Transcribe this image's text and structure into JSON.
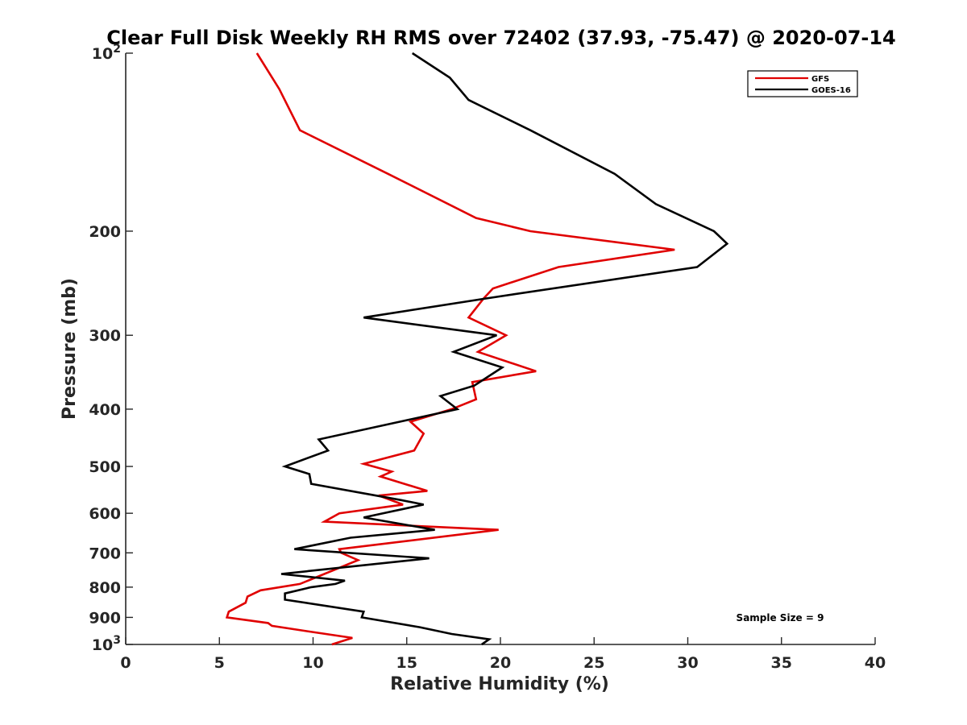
{
  "chart_data": {
    "type": "line",
    "title": "Clear Full Disk Weekly RH RMS over 72402 (37.93, -75.47) @ 2020-07-14",
    "xlabel": "Relative Humidity (%)",
    "ylabel": "Pressure (mb)",
    "xlim": [
      0,
      40
    ],
    "ylim": [
      100,
      1000
    ],
    "yscale": "log",
    "y_reversed": true,
    "grid": false,
    "legend_position": "top-right",
    "xticks": [
      0,
      5,
      10,
      15,
      20,
      25,
      30,
      35,
      40
    ],
    "xtick_labels": [
      "0",
      "5",
      "10",
      "15",
      "20",
      "25",
      "30",
      "35",
      "40"
    ],
    "yticks": [
      100,
      200,
      300,
      400,
      500,
      600,
      700,
      800,
      900,
      1000
    ],
    "ytick_labels": [
      {
        "base": "10",
        "exp": "2"
      },
      {
        "base": "200",
        "exp": ""
      },
      {
        "base": "300",
        "exp": ""
      },
      {
        "base": "400",
        "exp": ""
      },
      {
        "base": "500",
        "exp": ""
      },
      {
        "base": "600",
        "exp": ""
      },
      {
        "base": "700",
        "exp": ""
      },
      {
        "base": "800",
        "exp": ""
      },
      {
        "base": "900",
        "exp": ""
      },
      {
        "base": "10",
        "exp": "3"
      }
    ],
    "series": [
      {
        "name": "GFS",
        "color": "#e00000",
        "points": [
          [
            7.0,
            100
          ],
          [
            8.2,
            115
          ],
          [
            9.3,
            135
          ],
          [
            14.0,
            160
          ],
          [
            18.7,
            190
          ],
          [
            21.6,
            200
          ],
          [
            29.3,
            215
          ],
          [
            23.1,
            230
          ],
          [
            19.6,
            250
          ],
          [
            19.1,
            260
          ],
          [
            18.3,
            280
          ],
          [
            20.3,
            300
          ],
          [
            18.8,
            320
          ],
          [
            21.9,
            345
          ],
          [
            18.5,
            360
          ],
          [
            18.7,
            385
          ],
          [
            17.4,
            400
          ],
          [
            15.2,
            420
          ],
          [
            15.9,
            440
          ],
          [
            15.4,
            470
          ],
          [
            12.7,
            495
          ],
          [
            14.2,
            510
          ],
          [
            13.6,
            520
          ],
          [
            16.1,
            550
          ],
          [
            13.5,
            560
          ],
          [
            14.8,
            580
          ],
          [
            11.4,
            600
          ],
          [
            10.6,
            620
          ],
          [
            19.9,
            640
          ],
          [
            11.4,
            690
          ],
          [
            11.5,
            700
          ],
          [
            12.4,
            720
          ],
          [
            9.3,
            790
          ],
          [
            7.2,
            810
          ],
          [
            6.5,
            830
          ],
          [
            6.4,
            850
          ],
          [
            5.5,
            880
          ],
          [
            5.4,
            900
          ],
          [
            7.6,
            920
          ],
          [
            7.8,
            930
          ],
          [
            9.7,
            950
          ],
          [
            12.1,
            975
          ],
          [
            11.0,
            1000
          ]
        ]
      },
      {
        "name": "GOES-16",
        "color": "#000000",
        "points": [
          [
            15.3,
            100
          ],
          [
            17.3,
            110
          ],
          [
            18.3,
            120
          ],
          [
            21.6,
            135
          ],
          [
            26.1,
            160
          ],
          [
            28.3,
            180
          ],
          [
            31.4,
            200
          ],
          [
            32.1,
            210
          ],
          [
            30.5,
            230
          ],
          [
            19.2,
            260
          ],
          [
            12.7,
            280
          ],
          [
            19.8,
            300
          ],
          [
            17.5,
            320
          ],
          [
            20.1,
            340
          ],
          [
            18.6,
            365
          ],
          [
            16.8,
            380
          ],
          [
            17.7,
            400
          ],
          [
            10.3,
            450
          ],
          [
            10.8,
            470
          ],
          [
            8.5,
            500
          ],
          [
            9.8,
            515
          ],
          [
            9.9,
            535
          ],
          [
            14.7,
            570
          ],
          [
            15.9,
            580
          ],
          [
            12.7,
            610
          ],
          [
            16.5,
            640
          ],
          [
            12.0,
            660
          ],
          [
            9.0,
            690
          ],
          [
            16.2,
            715
          ],
          [
            8.3,
            760
          ],
          [
            11.7,
            780
          ],
          [
            11.2,
            790
          ],
          [
            9.9,
            800
          ],
          [
            8.5,
            820
          ],
          [
            8.5,
            840
          ],
          [
            12.7,
            880
          ],
          [
            12.6,
            900
          ],
          [
            15.7,
            935
          ],
          [
            17.4,
            960
          ],
          [
            19.4,
            980
          ],
          [
            19.0,
            1000
          ]
        ]
      }
    ],
    "legend": [
      {
        "name": "GFS",
        "color": "#e00000"
      },
      {
        "name": "GOES-16",
        "color": "#000000"
      }
    ],
    "annotations": [
      {
        "text": "Sample Size = 9",
        "position": "bottom-right"
      }
    ]
  }
}
